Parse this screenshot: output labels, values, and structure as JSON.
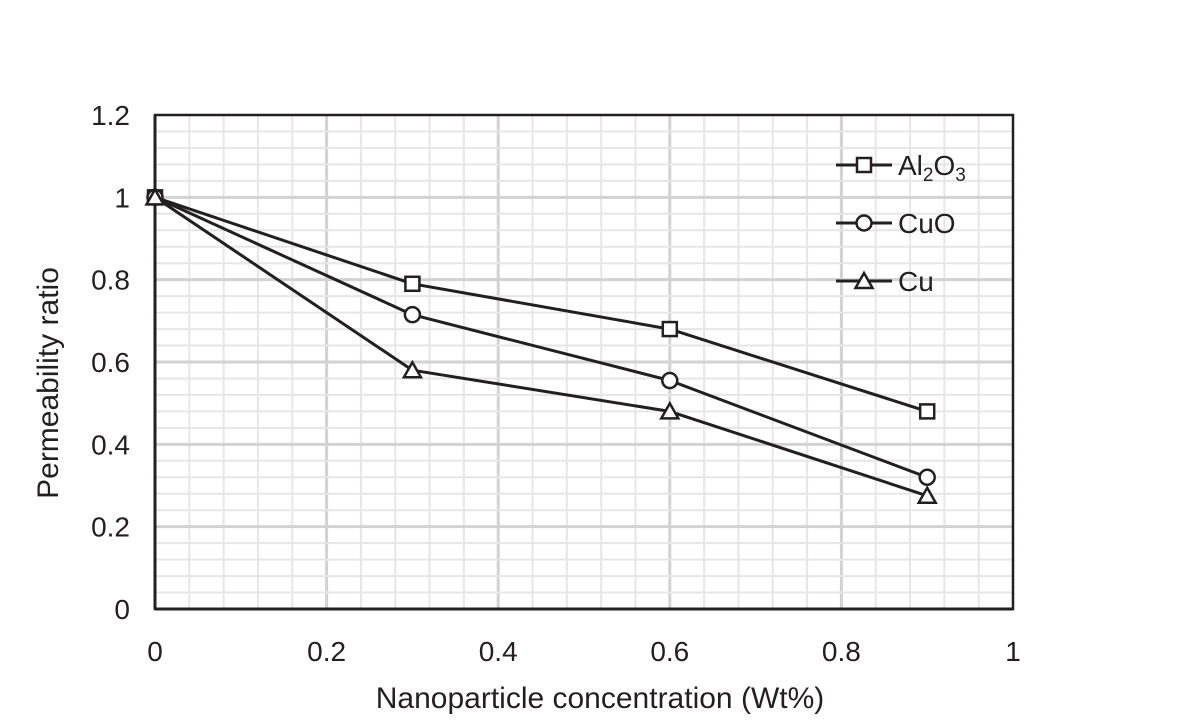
{
  "chart_data": {
    "type": "line",
    "xlabel": "Nanoparticle concentration (Wt%)",
    "ylabel": "Permeability ratio",
    "xlim": [
      0,
      1
    ],
    "ylim": [
      0,
      1.2
    ],
    "x_ticks": [
      "0",
      "0.2",
      "0.4",
      "0.6",
      "0.8",
      "1"
    ],
    "y_ticks": [
      "0",
      "0.2",
      "0.4",
      "0.6",
      "0.8",
      "1",
      "1.2"
    ],
    "grid": true,
    "legend_position": "top-right",
    "x": [
      0,
      0.3,
      0.6,
      0.9
    ],
    "series": [
      {
        "name": "Al2O3",
        "label_base": "Al",
        "sub1": "2",
        "label_mid": "O",
        "sub2": "3",
        "marker": "square",
        "values": [
          1.0,
          0.79,
          0.68,
          0.48
        ]
      },
      {
        "name": "CuO",
        "marker": "circle",
        "values": [
          1.0,
          0.715,
          0.555,
          0.32
        ]
      },
      {
        "name": "Cu",
        "marker": "triangle",
        "values": [
          1.0,
          0.58,
          0.48,
          0.275
        ]
      }
    ],
    "colors": {
      "line": "#231f20",
      "grid": "#e6e6e6",
      "marker_fill": "#ffffff"
    }
  }
}
